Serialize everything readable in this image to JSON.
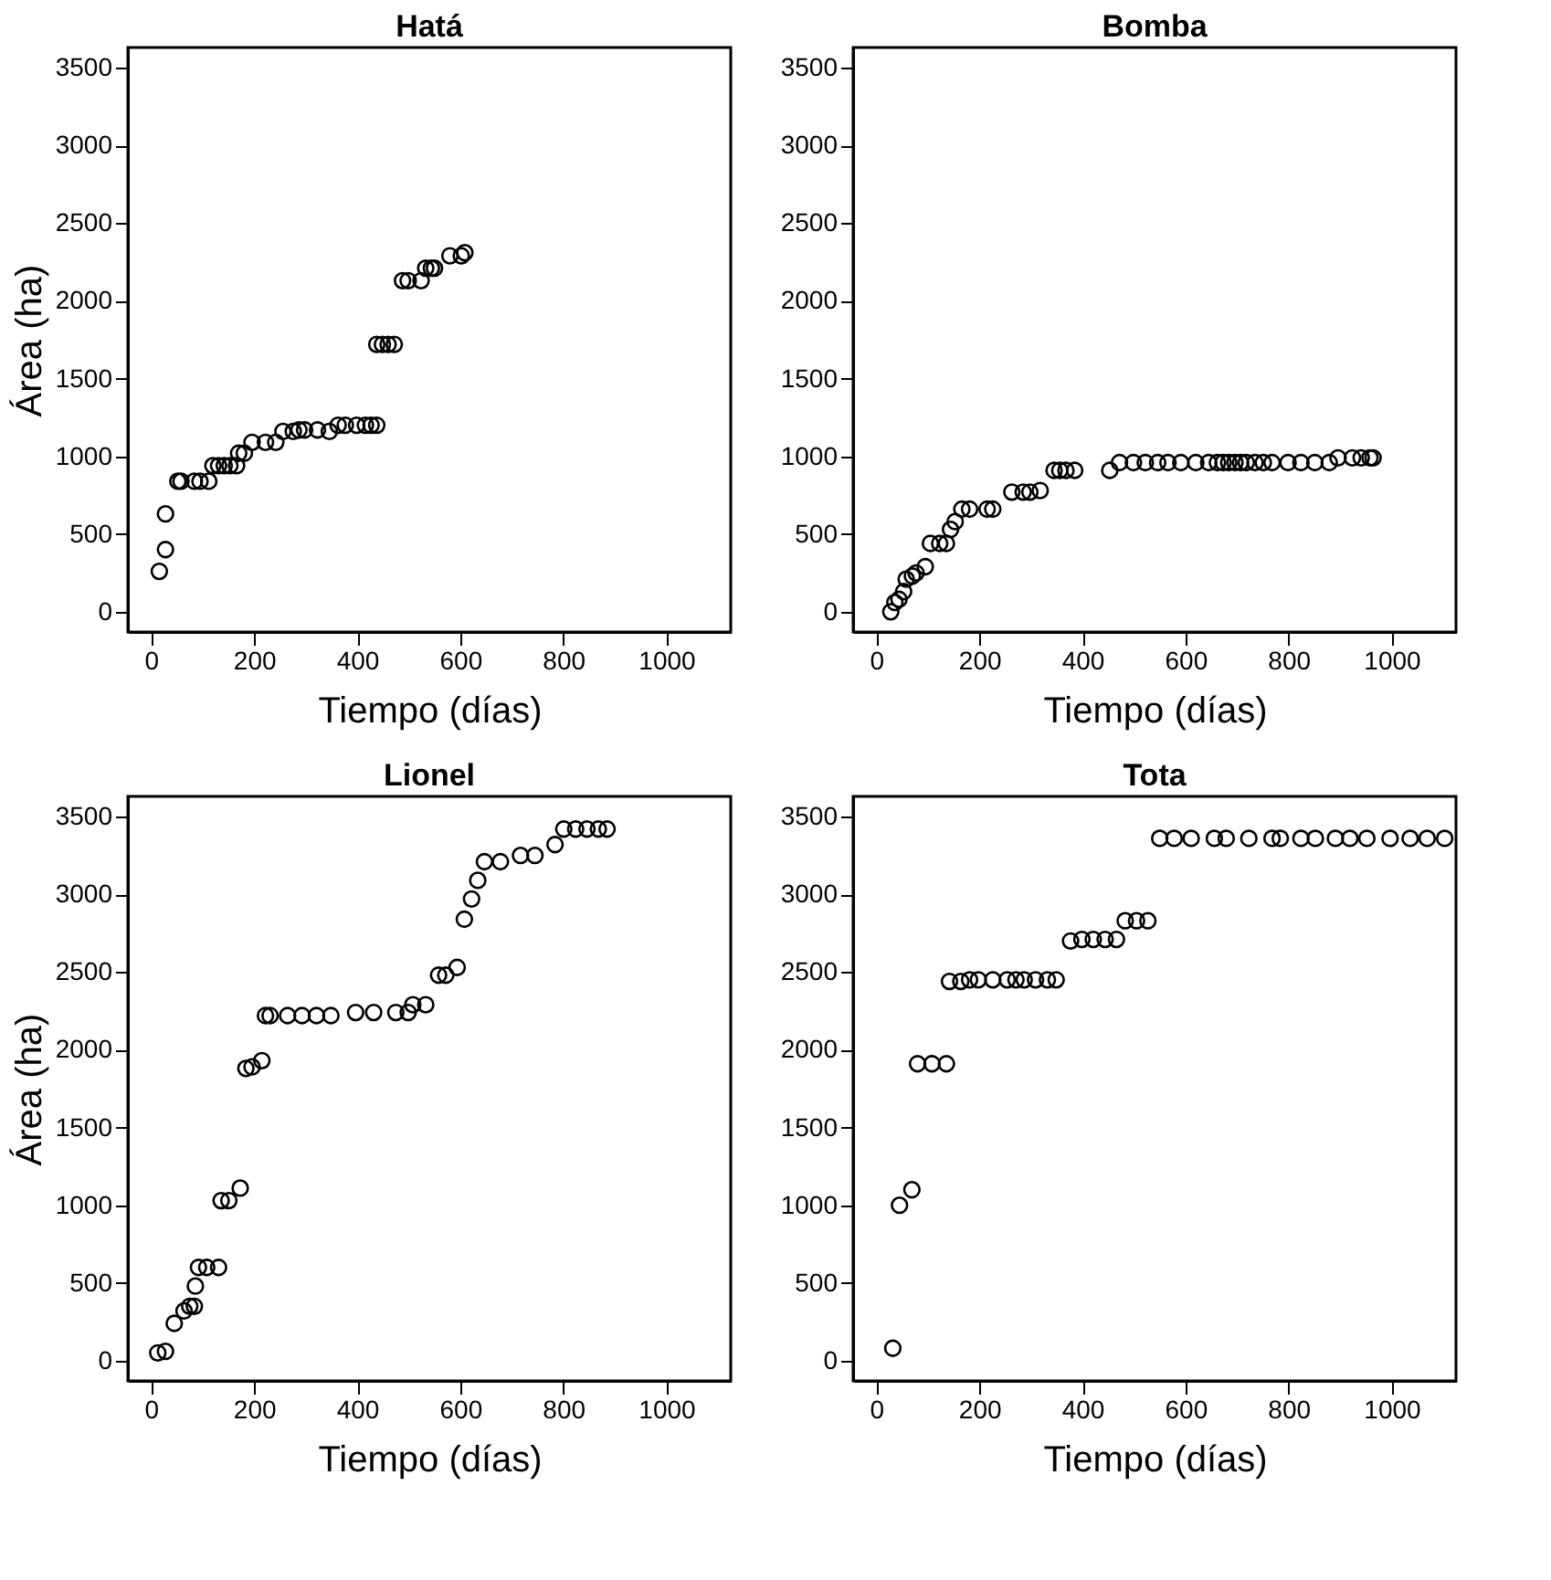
{
  "chart_data": [
    {
      "type": "scatter",
      "title": "Hatá",
      "xlabel": "Tiempo (días)",
      "ylabel": "Área (ha)",
      "marker": "circle",
      "grid": false,
      "xlim": [
        -45,
        1125
      ],
      "ylim": [
        -130,
        3630
      ],
      "xticks": [
        0,
        200,
        400,
        600,
        800,
        1000
      ],
      "yticks": [
        0,
        500,
        1000,
        1500,
        2000,
        2500,
        3000,
        3500
      ],
      "series": [
        {
          "color": "#000000",
          "x": [
            16,
            28,
            28,
            52,
            58,
            84,
            95,
            112,
            120,
            131,
            142,
            153,
            166,
            170,
            181,
            196,
            222,
            242,
            256,
            276,
            287,
            298,
            323,
            346,
            363,
            377,
            399,
            416,
            427,
            438,
            438,
            449,
            460,
            472,
            488,
            499,
            524,
            533,
            544,
            550,
            580,
            602,
            609
          ],
          "values": [
            260,
            400,
            630,
            840,
            840,
            840,
            840,
            840,
            940,
            940,
            940,
            940,
            940,
            1020,
            1020,
            1090,
            1090,
            1090,
            1160,
            1160,
            1170,
            1170,
            1170,
            1160,
            1200,
            1200,
            1200,
            1200,
            1200,
            1200,
            1720,
            1720,
            1720,
            1720,
            2130,
            2130,
            2130,
            2210,
            2210,
            2210,
            2290,
            2290,
            2310
          ]
        }
      ]
    },
    {
      "type": "scatter",
      "title": "Bomba",
      "xlabel": "Tiempo (días)",
      "marker": "circle",
      "grid": false,
      "xlim": [
        -45,
        1125
      ],
      "ylim": [
        -130,
        3630
      ],
      "xticks": [
        0,
        200,
        400,
        600,
        800,
        1000
      ],
      "yticks": [
        0,
        500,
        1000,
        1500,
        2000,
        2500,
        3000,
        3500
      ],
      "series": [
        {
          "color": "#000000",
          "x": [
            28,
            36,
            44,
            53,
            58,
            70,
            77,
            95,
            105,
            123,
            136,
            144,
            153,
            166,
            181,
            215,
            226,
            263,
            285,
            298,
            318,
            345,
            356,
            368,
            385,
            453,
            472,
            499,
            522,
            546,
            566,
            591,
            620,
            645,
            662,
            673,
            684,
            696,
            707,
            718,
            735,
            751,
            768,
            799,
            824,
            851,
            879,
            896,
            924,
            941,
            958,
            964
          ],
          "values": [
            0,
            60,
            80,
            130,
            210,
            230,
            250,
            290,
            440,
            440,
            440,
            530,
            580,
            660,
            660,
            660,
            660,
            770,
            770,
            770,
            780,
            910,
            910,
            910,
            910,
            910,
            960,
            960,
            960,
            960,
            960,
            960,
            960,
            960,
            960,
            960,
            960,
            960,
            960,
            960,
            960,
            960,
            960,
            960,
            960,
            960,
            960,
            990,
            990,
            990,
            990,
            990
          ]
        }
      ]
    },
    {
      "type": "scatter",
      "title": "Lionel",
      "xlabel": "Tiempo (días)",
      "ylabel": "Área (ha)",
      "marker": "circle",
      "grid": false,
      "xlim": [
        -45,
        1125
      ],
      "ylim": [
        -130,
        3630
      ],
      "xticks": [
        0,
        200,
        400,
        600,
        800,
        1000
      ],
      "yticks": [
        0,
        500,
        1000,
        1500,
        2000,
        2500,
        3000,
        3500
      ],
      "series": [
        {
          "color": "#000000",
          "x": [
            13,
            28,
            45,
            64,
            75,
            84,
            86,
            92,
            108,
            131,
            136,
            151,
            173,
            184,
            196,
            215,
            222,
            231,
            265,
            293,
            321,
            349,
            397,
            432,
            475,
            499,
            508,
            533,
            558,
            572,
            594,
            608,
            622,
            634,
            647,
            678,
            717,
            745,
            784,
            801,
            824,
            846,
            868,
            885
          ],
          "values": [
            50,
            60,
            240,
            320,
            350,
            350,
            480,
            600,
            600,
            600,
            1030,
            1030,
            1110,
            1880,
            1890,
            1930,
            2220,
            2220,
            2220,
            2220,
            2220,
            2220,
            2240,
            2240,
            2240,
            2240,
            2290,
            2290,
            2480,
            2480,
            2530,
            2840,
            2970,
            3090,
            3210,
            3210,
            3250,
            3250,
            3320,
            3420,
            3420,
            3420,
            3420,
            3420
          ]
        }
      ]
    },
    {
      "type": "scatter",
      "title": "Tota",
      "xlabel": "Tiempo (días)",
      "marker": "circle",
      "grid": false,
      "xlim": [
        -45,
        1125
      ],
      "ylim": [
        -130,
        3630
      ],
      "xticks": [
        0,
        200,
        400,
        600,
        800,
        1000
      ],
      "yticks": [
        0,
        500,
        1000,
        1500,
        2000,
        2500,
        3000,
        3500
      ],
      "series": [
        {
          "color": "#000000",
          "x": [
            32,
            45,
            69,
            80,
            108,
            136,
            142,
            164,
            181,
            198,
            226,
            254,
            271,
            287,
            309,
            332,
            349,
            377,
            399,
            421,
            444,
            466,
            483,
            505,
            527,
            550,
            578,
            611,
            656,
            679,
            723,
            768,
            784,
            824,
            852,
            891,
            919,
            952,
            997,
            1036,
            1069,
            1103
          ],
          "values": [
            80,
            1000,
            1100,
            1910,
            1910,
            1910,
            2440,
            2440,
            2450,
            2450,
            2450,
            2450,
            2450,
            2450,
            2450,
            2450,
            2450,
            2700,
            2710,
            2710,
            2710,
            2710,
            2830,
            2830,
            2830,
            3360,
            3360,
            3360,
            3360,
            3360,
            3360,
            3360,
            3360,
            3360,
            3360,
            3360,
            3360,
            3360,
            3360,
            3360,
            3360,
            3360
          ]
        }
      ]
    }
  ]
}
